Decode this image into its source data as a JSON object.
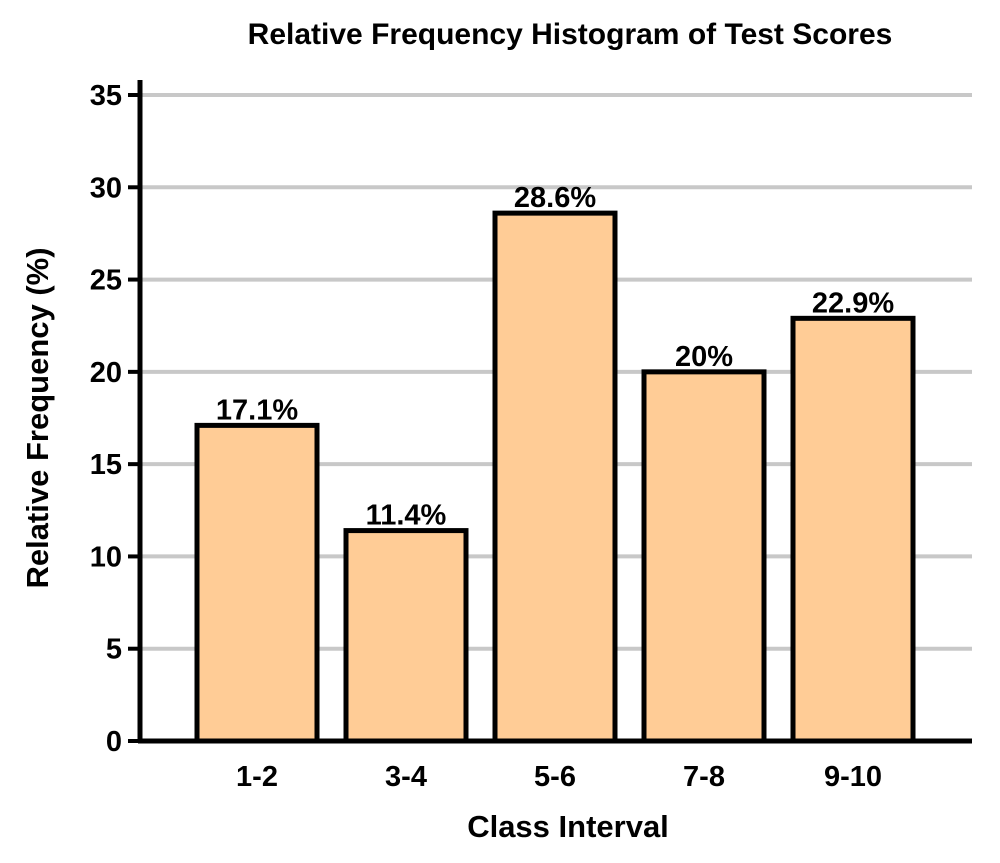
{
  "chart_data": {
    "type": "bar",
    "title": "Relative Frequency Histogram of Test Scores",
    "xlabel": "Class Interval",
    "ylabel": "Relative Frequency (%)",
    "categories": [
      "1-2",
      "3-4",
      "5-6",
      "7-8",
      "9-10"
    ],
    "values": [
      17.1,
      11.4,
      28.6,
      20,
      22.9
    ],
    "data_labels": [
      "17.1%",
      "11.4%",
      "28.6%",
      "20%",
      "22.9%"
    ],
    "ylim": [
      0,
      35
    ],
    "yticks": [
      0,
      5,
      10,
      15,
      20,
      25,
      30,
      35
    ],
    "grid": "horizontal",
    "colors": {
      "bar_fill": "#FFCC96",
      "bar_stroke": "#000000",
      "grid": "#C8C8C8",
      "axis": "#000000"
    }
  }
}
